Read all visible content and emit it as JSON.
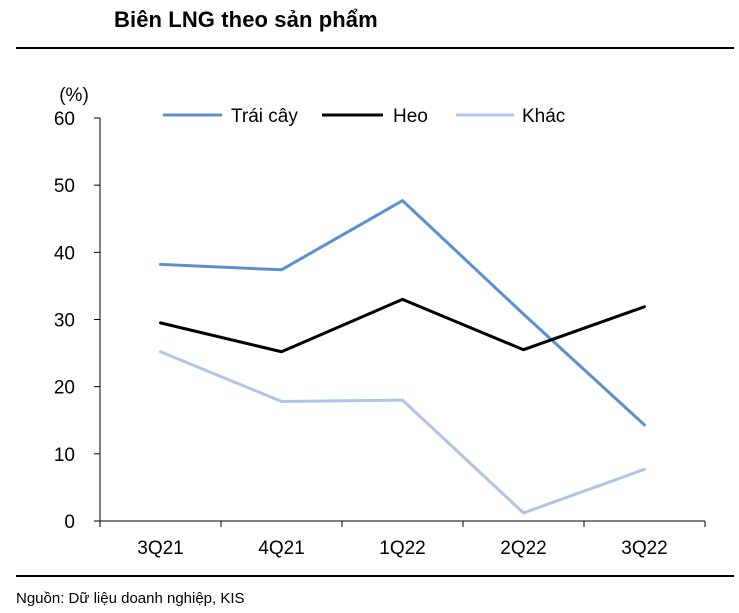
{
  "title": "Biên LNG theo sản phẩm",
  "source": "Nguồn: Dữ liệu doanh nghiệp, KIS",
  "chart_data": {
    "type": "line",
    "title": "Biên LNG theo sản phẩm",
    "xlabel": "",
    "ylabel": "(%)",
    "categories": [
      "3Q21",
      "4Q21",
      "1Q22",
      "2Q22",
      "3Q22"
    ],
    "ylim": [
      0,
      60
    ],
    "yticks": [
      0,
      10,
      20,
      30,
      40,
      50,
      60
    ],
    "grid": false,
    "legend_position": "top",
    "series": [
      {
        "name": "Trái cây",
        "color": "#5b8fd0",
        "values": [
          38.2,
          37.4,
          47.7,
          30.8,
          14.3
        ]
      },
      {
        "name": "Heo",
        "color": "#000000",
        "values": [
          29.5,
          25.2,
          33.0,
          25.5,
          31.9
        ]
      },
      {
        "name": "Khác",
        "color": "#b2c4e6",
        "values": [
          25.2,
          17.8,
          18.0,
          1.2,
          7.7
        ]
      }
    ]
  }
}
